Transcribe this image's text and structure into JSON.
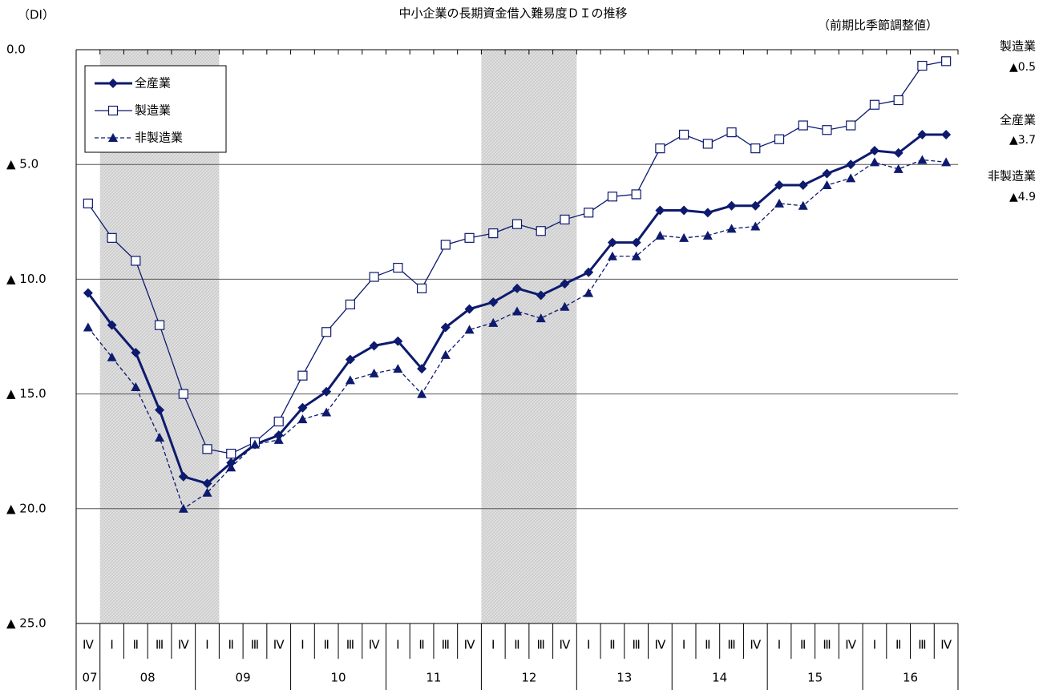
{
  "chart_data": {
    "type": "line",
    "title": "中小企業の長期資金借入難易度ＤＩの推移",
    "y_unit_label": "（DI）",
    "subtitle": "（前期比季節調整値）",
    "categories": [
      "Ⅳ",
      "Ⅰ",
      "Ⅱ",
      "Ⅲ",
      "Ⅳ",
      "Ⅰ",
      "Ⅱ",
      "Ⅲ",
      "Ⅳ",
      "Ⅰ",
      "Ⅱ",
      "Ⅲ",
      "Ⅳ",
      "Ⅰ",
      "Ⅱ",
      "Ⅲ",
      "Ⅳ",
      "Ⅰ",
      "Ⅱ",
      "Ⅲ",
      "Ⅳ",
      "Ⅰ",
      "Ⅱ",
      "Ⅲ",
      "Ⅳ",
      "Ⅰ",
      "Ⅱ",
      "Ⅲ",
      "Ⅳ",
      "Ⅰ",
      "Ⅱ",
      "Ⅲ",
      "Ⅳ",
      "Ⅰ",
      "Ⅱ",
      "Ⅲ",
      "Ⅳ"
    ],
    "year_groups": [
      {
        "label": "07",
        "count": 1
      },
      {
        "label": "08",
        "count": 4
      },
      {
        "label": "09",
        "count": 4
      },
      {
        "label": "10",
        "count": 4
      },
      {
        "label": "11",
        "count": 4
      },
      {
        "label": "12",
        "count": 4
      },
      {
        "label": "13",
        "count": 4
      },
      {
        "label": "14",
        "count": 4
      },
      {
        "label": "15",
        "count": 4
      },
      {
        "label": "16",
        "count": 4
      }
    ],
    "shaded_periods": [
      {
        "start": 1,
        "end": 5
      },
      {
        "start": 17,
        "end": 20
      }
    ],
    "ylim": [
      -25,
      0
    ],
    "yticks": [
      {
        "value": -25,
        "label": "▲ 25.0"
      },
      {
        "value": -20,
        "label": "▲ 20.0"
      },
      {
        "value": -15,
        "label": "▲ 15.0"
      },
      {
        "value": -10,
        "label": "▲ 10.0"
      },
      {
        "value": -5,
        "label": "▲ 5.0"
      },
      {
        "value": 0,
        "label": "0.0"
      }
    ],
    "grid": true,
    "legend": "upper left",
    "series": [
      {
        "name": "全産業",
        "color": "#0d1a6e",
        "marker": "diamond",
        "dash": false,
        "width": 3,
        "end_label": "▲3.7",
        "values": [
          -10.6,
          -12.0,
          -13.2,
          -15.7,
          -18.6,
          -18.9,
          -18.0,
          -17.2,
          -16.8,
          -15.6,
          -14.9,
          -13.5,
          -12.9,
          -12.7,
          -13.9,
          -12.1,
          -11.3,
          -11.0,
          -10.4,
          -10.7,
          -10.2,
          -9.7,
          -8.4,
          -8.4,
          -7.0,
          -7.0,
          -7.1,
          -6.8,
          -6.8,
          -5.9,
          -5.9,
          -5.4,
          -5.0,
          -4.4,
          -4.5,
          -3.7,
          -3.7
        ]
      },
      {
        "name": "製造業",
        "color": "#0d1a6e",
        "marker": "square",
        "dash": false,
        "width": 1.3,
        "end_label": "▲0.5",
        "values": [
          -6.7,
          -8.2,
          -9.2,
          -12.0,
          -15.0,
          -17.4,
          -17.6,
          -17.1,
          -16.2,
          -14.2,
          -12.3,
          -11.1,
          -9.9,
          -9.5,
          -10.4,
          -8.5,
          -8.2,
          -8.0,
          -7.6,
          -7.9,
          -7.4,
          -7.1,
          -6.4,
          -6.3,
          -4.3,
          -3.7,
          -4.1,
          -3.6,
          -4.3,
          -3.9,
          -3.3,
          -3.5,
          -3.3,
          -2.4,
          -2.2,
          -0.7,
          -0.5
        ]
      },
      {
        "name": "非製造業",
        "color": "#0d1a6e",
        "marker": "triangle",
        "dash": true,
        "width": 1.3,
        "end_label": "▲4.9",
        "values": [
          -12.1,
          -13.4,
          -14.7,
          -16.9,
          -20.0,
          -19.3,
          -18.2,
          -17.2,
          -17.0,
          -16.1,
          -15.8,
          -14.4,
          -14.1,
          -13.9,
          -15.0,
          -13.3,
          -12.2,
          -11.9,
          -11.4,
          -11.7,
          -11.2,
          -10.6,
          -9.0,
          -9.0,
          -8.1,
          -8.2,
          -8.1,
          -7.8,
          -7.7,
          -6.7,
          -6.8,
          -5.9,
          -5.6,
          -4.9,
          -5.2,
          -4.8,
          -4.9
        ]
      }
    ]
  }
}
